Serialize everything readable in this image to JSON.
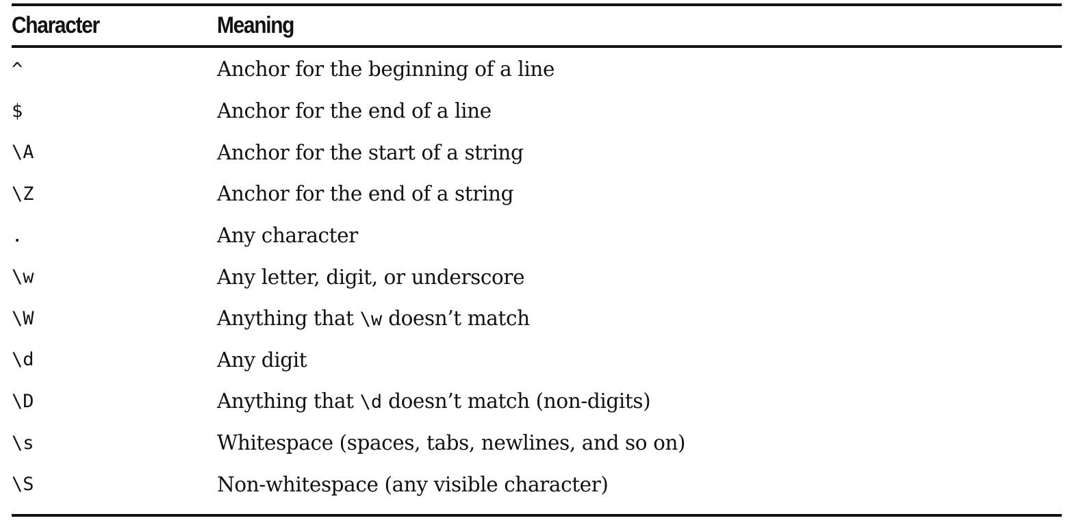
{
  "table": {
    "headers": {
      "character": "Character",
      "meaning": "Meaning"
    },
    "rows": [
      {
        "character": "^",
        "meaning": "Anchor for the beginning of a line"
      },
      {
        "character": "$",
        "meaning": "Anchor for the end of a line"
      },
      {
        "character": "\\A",
        "meaning": "Anchor for the start of a string"
      },
      {
        "character": "\\Z",
        "meaning": "Anchor for the end of a string"
      },
      {
        "character": ".",
        "meaning": "Any character"
      },
      {
        "character": "\\w",
        "meaning": "Any letter, digit, or underscore"
      },
      {
        "character": "\\W",
        "meaning_pre": "Anything that ",
        "meaning_code": "\\w",
        "meaning_post": " doesn’t match"
      },
      {
        "character": "\\d",
        "meaning": "Any digit"
      },
      {
        "character": "\\D",
        "meaning_pre": "Anything that ",
        "meaning_code": "\\d",
        "meaning_post": " doesn’t match (non-digits)"
      },
      {
        "character": "\\s",
        "meaning": "Whitespace (spaces, tabs, newlines, and so on)"
      },
      {
        "character": "\\S",
        "meaning": "Non-whitespace (any visible character)"
      }
    ]
  }
}
